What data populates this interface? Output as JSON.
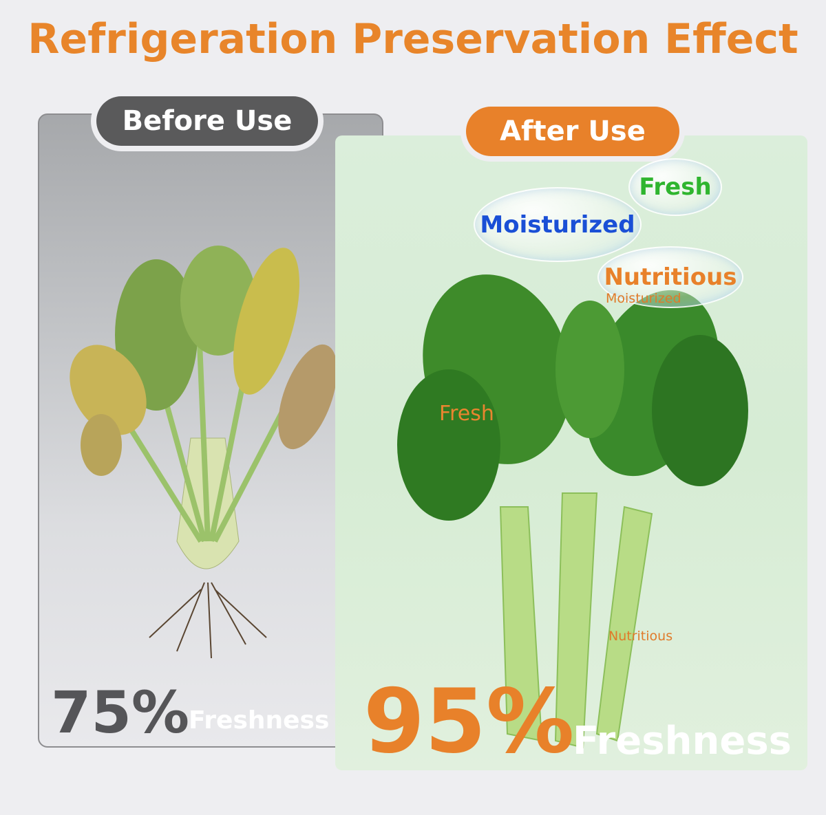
{
  "title": "Refrigeration Preservation Effect",
  "before": {
    "label": "Before Use",
    "percent": "75%",
    "caption": "Freshness"
  },
  "after": {
    "label": "After Use",
    "percent": "95%",
    "caption": "Freshness",
    "bubbles": [
      "Fresh",
      "Moisturized",
      "Nutritious",
      "Moisturized",
      "Fresh",
      "Nutritious"
    ]
  },
  "colors": {
    "accent": "#e8812a",
    "dark": "#5a5a5b",
    "blue": "#1a4fd6",
    "green": "#2fb52f"
  }
}
